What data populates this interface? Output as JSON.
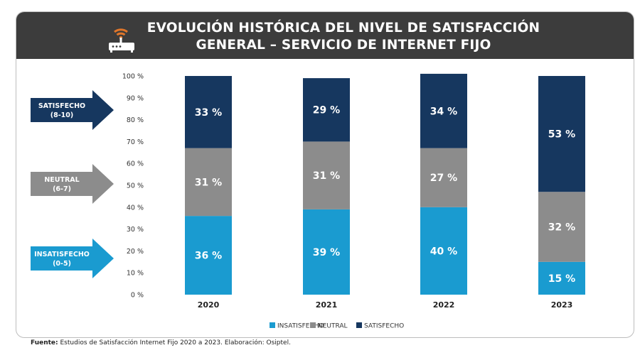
{
  "title_line1": "EVOLUCIÓN HISTÓRICA DEL NIVEL DE SATISFACCIÓN",
  "title_line2": "GENERAL – SERVICIO DE INTERNET FIJO",
  "source_label": "Fuente:",
  "source_text": "Estudios de Satisfacción Internet Fijo 2020 a 2023. Elaboración: Osiptel.",
  "colors": {
    "header": "#3c3c3c",
    "insatisfecho": "#1a9bd0",
    "neutral": "#8c8c8c",
    "satisfecho": "#16375f",
    "router_accent": "#e0762a"
  },
  "icons": {
    "header_icon": "wifi-router-icon"
  },
  "side_arrows": [
    {
      "line1": "SATISFECHO",
      "line2": "(8-10)",
      "series": "SATISFECHO"
    },
    {
      "line1": "NEUTRAL",
      "line2": "(6-7)",
      "series": "NEUTRAL"
    },
    {
      "line1": "INSATISFECHO",
      "line2": "(0-5)",
      "series": "INSATISFECHO"
    }
  ],
  "chart_data": {
    "type": "bar",
    "stacked": true,
    "categories": [
      "2020",
      "2021",
      "2022",
      "2023"
    ],
    "series": [
      {
        "name": "INSATISFECHO",
        "values": [
          36,
          39,
          40,
          15
        ],
        "labels": [
          "36 %",
          "39 %",
          "40 %",
          "15 %"
        ]
      },
      {
        "name": "NEUTRAL",
        "values": [
          31,
          31,
          27,
          32
        ],
        "labels": [
          "31 %",
          "31 %",
          "27 %",
          "32 %"
        ]
      },
      {
        "name": "SATISFECHO",
        "values": [
          33,
          29,
          34,
          53
        ],
        "labels": [
          "33 %",
          "29 %",
          "34 %",
          "53 %"
        ]
      }
    ],
    "ylim": [
      0,
      100
    ],
    "yticks": [
      "0 %",
      "10 %",
      "20 %",
      "30 %",
      "40 %",
      "50 %",
      "60 %",
      "70 %",
      "80 %",
      "90 %",
      "100 %"
    ],
    "legend_position": "bottom",
    "grid": false
  }
}
